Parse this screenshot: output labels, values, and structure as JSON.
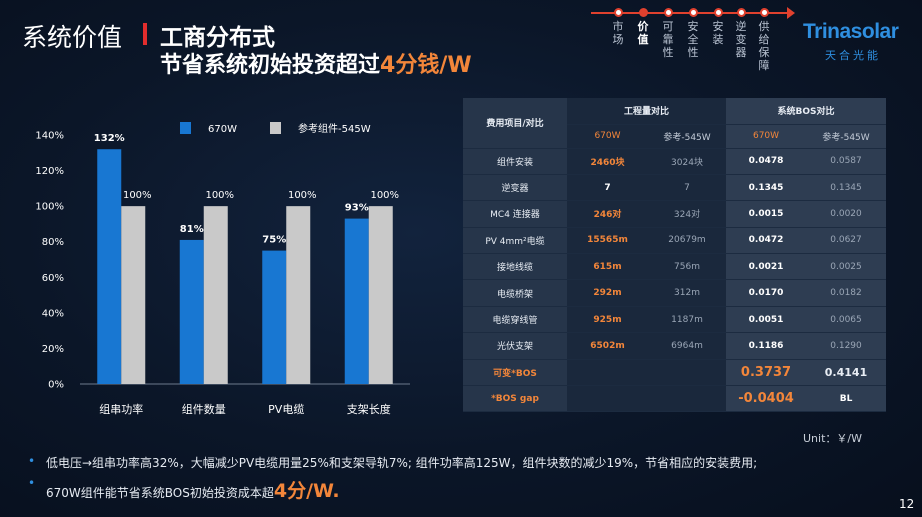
{
  "header": {
    "title": "系统价值",
    "subtitle": "工商分布式",
    "main_prefix": "节省系统初始投资超过",
    "main_highlight": "4分钱/W"
  },
  "nav": {
    "items": [
      {
        "label": "市场",
        "active": false
      },
      {
        "label": "价值",
        "active": true
      },
      {
        "label": "可靠性",
        "active": false
      },
      {
        "label": "安全性",
        "active": false
      },
      {
        "label": "安装",
        "active": false
      },
      {
        "label": "逆变器",
        "active": false
      },
      {
        "label": "供给保障",
        "active": false
      }
    ]
  },
  "logo": {
    "text": "Trinasolar",
    "cn": "天合光能"
  },
  "chart_data": {
    "type": "bar",
    "categories": [
      "组串功率",
      "组件数量",
      "PV电缆",
      "支架长度"
    ],
    "series": [
      {
        "name": "670W",
        "values": [
          132,
          81,
          75,
          93
        ],
        "labels": [
          "132%",
          "81%",
          "75%",
          "93%"
        ],
        "color": "#1877d2"
      },
      {
        "name": "参考组件-545W",
        "values": [
          100,
          100,
          100,
          100
        ],
        "labels": [
          "100%",
          "100%",
          "100%",
          "100%"
        ],
        "color": "#c9c9c9"
      }
    ],
    "ylim": [
      0,
      140
    ],
    "yticks": [
      "0%",
      "20%",
      "40%",
      "60%",
      "80%",
      "100%",
      "120%",
      "140%"
    ],
    "ytick_values": [
      0,
      20,
      40,
      60,
      80,
      100,
      120,
      140
    ],
    "legend_position": "top"
  },
  "table": {
    "corner_header": "费用项目/对比",
    "group1_header": "工程量对比",
    "group2_header": "系统BOS对比",
    "subheaders": [
      "670W",
      "参考-545W",
      "670W",
      "参考-545W"
    ],
    "rows": [
      {
        "label": "组件安装",
        "c1": "2460块",
        "c2": "3024块",
        "c3": "0.0478",
        "c4": "0.0587"
      },
      {
        "label": "逆变器",
        "c1": "7",
        "c2": "7",
        "c3": "0.1345",
        "c4": "0.1345"
      },
      {
        "label": "MC4 连接器",
        "c1": "246对",
        "c2": "324对",
        "c3": "0.0015",
        "c4": "0.0020"
      },
      {
        "label": "PV 4mm²电缆",
        "c1": "15565m",
        "c2": "20679m",
        "c3": "0.0472",
        "c4": "0.0627"
      },
      {
        "label": "接地线缆",
        "c1": "615m",
        "c2": "756m",
        "c3": "0.0021",
        "c4": "0.0025"
      },
      {
        "label": "电缆桥架",
        "c1": "292m",
        "c2": "312m",
        "c3": "0.0170",
        "c4": "0.0182"
      },
      {
        "label": "电缆穿线管",
        "c1": "925m",
        "c2": "1187m",
        "c3": "0.0051",
        "c4": "0.0065"
      },
      {
        "label": "光伏支架",
        "c1": "6502m",
        "c2": "6964m",
        "c3": "0.1186",
        "c4": "0.1290"
      }
    ],
    "total_row": {
      "label": "可变*BOS",
      "c3": "0.3737",
      "c4": "0.4141"
    },
    "gap_row": {
      "label": "*BOS gap",
      "c3": "-0.0404",
      "c4": "BL"
    }
  },
  "unit": "Unit：￥/W",
  "notes": {
    "bullet": "•",
    "line1": "低电压→组串功率高32%，大幅减少PV电缆用量25%和支架导轨7%; 组件功率高125W，组件块数的减少19%，节省相应的安装费用;",
    "line2_prefix": "670W组件能节省系统BOS初始投资成本超",
    "line2_highlight": "4分/W."
  },
  "page_number": "12",
  "colors": {
    "accent_orange": "#f3863a",
    "accent_red": "#e22d2d",
    "brand_blue": "#2f8fe0",
    "bar_blue": "#1877d2",
    "bar_grey": "#c9c9c9"
  }
}
